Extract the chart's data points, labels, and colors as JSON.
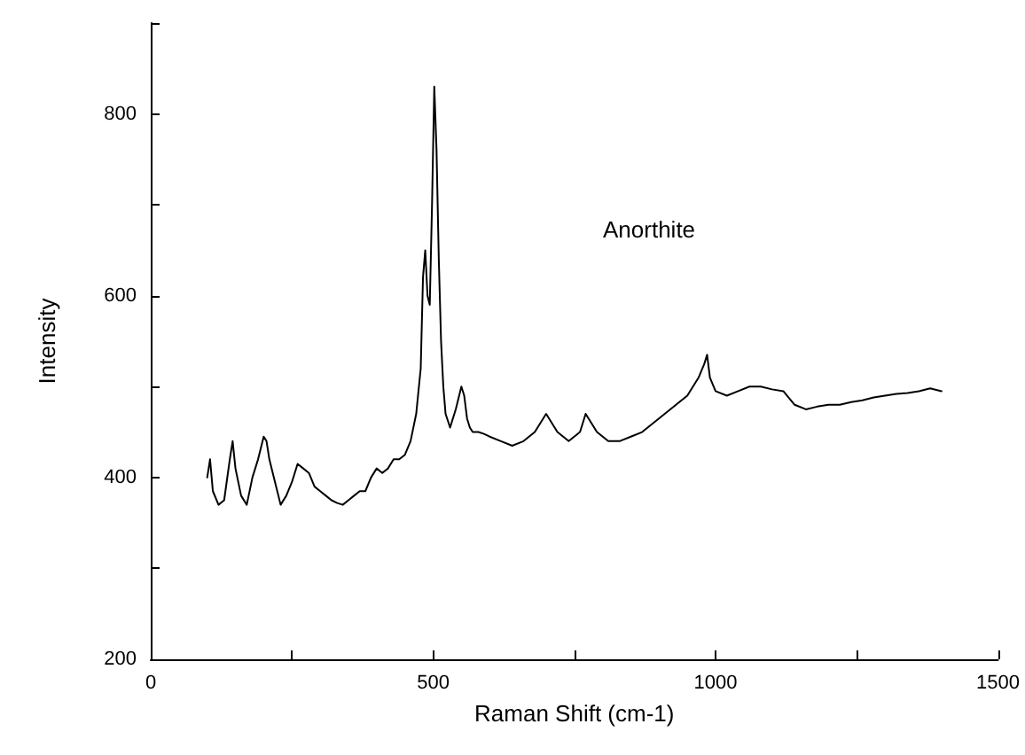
{
  "chart_data": {
    "type": "line",
    "xlabel": "Raman Shift (cm-1)",
    "ylabel": "Intensity",
    "annotations": [
      "Anorthite"
    ],
    "xlim": [
      0,
      1500
    ],
    "xticks": [
      0,
      {
        "value": 250,
        "label": null
      },
      500,
      {
        "value": 750,
        "label": null
      },
      1000,
      {
        "value": 1250,
        "label": null
      },
      1500
    ],
    "ylim": [
      200,
      900
    ],
    "yticks": [
      200,
      {
        "value": 300,
        "label": null
      },
      400,
      {
        "value": 500,
        "label": null
      },
      600,
      {
        "value": 700,
        "label": null
      },
      800,
      {
        "value": 900,
        "label": null
      }
    ],
    "grid": false,
    "marker": "none",
    "line_style": "solid",
    "series": [
      {
        "color": "#000000",
        "x": [
          100,
          105,
          110,
          120,
          130,
          140,
          145,
          150,
          160,
          170,
          180,
          190,
          200,
          205,
          210,
          220,
          230,
          240,
          250,
          260,
          270,
          280,
          290,
          300,
          310,
          320,
          330,
          340,
          350,
          360,
          370,
          380,
          390,
          400,
          410,
          420,
          430,
          440,
          450,
          460,
          470,
          478,
          482,
          486,
          490,
          494,
          498,
          502,
          506,
          510,
          514,
          518,
          522,
          530,
          540,
          550,
          555,
          560,
          565,
          570,
          580,
          590,
          600,
          620,
          640,
          660,
          680,
          700,
          720,
          740,
          760,
          770,
          780,
          790,
          810,
          830,
          850,
          870,
          890,
          910,
          930,
          950,
          970,
          980,
          985,
          990,
          1000,
          1020,
          1040,
          1060,
          1080,
          1100,
          1120,
          1140,
          1160,
          1180,
          1200,
          1220,
          1240,
          1260,
          1280,
          1300,
          1320,
          1340,
          1360,
          1380,
          1400
        ],
        "values": [
          400,
          420,
          385,
          370,
          375,
          420,
          440,
          410,
          380,
          370,
          400,
          420,
          445,
          440,
          420,
          395,
          370,
          380,
          395,
          415,
          410,
          405,
          390,
          385,
          380,
          375,
          372,
          370,
          375,
          380,
          385,
          385,
          400,
          410,
          405,
          410,
          420,
          420,
          425,
          440,
          470,
          520,
          620,
          650,
          600,
          590,
          700,
          830,
          760,
          640,
          550,
          500,
          470,
          455,
          475,
          500,
          490,
          465,
          455,
          450,
          450,
          448,
          445,
          440,
          435,
          440,
          450,
          470,
          450,
          440,
          450,
          470,
          460,
          450,
          440,
          440,
          445,
          450,
          460,
          470,
          480,
          490,
          510,
          525,
          535,
          510,
          495,
          490,
          495,
          500,
          500,
          497,
          495,
          480,
          475,
          478,
          480,
          480,
          483,
          485,
          488,
          490,
          492,
          493,
          495,
          498,
          495
        ]
      }
    ]
  }
}
